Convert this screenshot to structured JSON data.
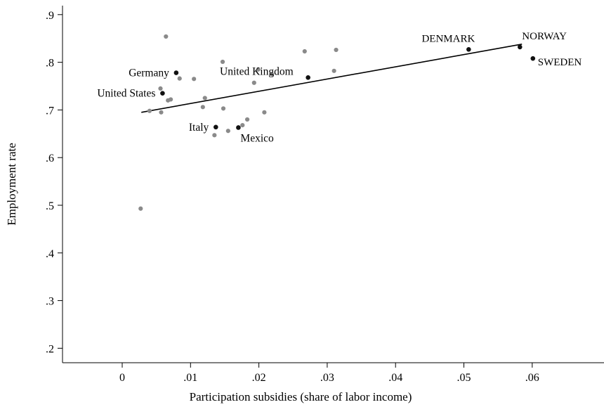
{
  "chart_data": {
    "type": "scatter",
    "xlabel": "Participation subsidies (share of labor income)",
    "ylabel": "Employment rate",
    "xlim": [
      -0.009,
      0.0695
    ],
    "ylim": [
      0.18,
      0.92
    ],
    "x_ticks": [
      0,
      0.01,
      0.02,
      0.03,
      0.04,
      0.05,
      0.06
    ],
    "x_tick_labels": [
      "0",
      ".01",
      ".02",
      ".03",
      ".04",
      ".05",
      ".06"
    ],
    "y_ticks": [
      0.2,
      0.3,
      0.4,
      0.5,
      0.6,
      0.7,
      0.8,
      0.9
    ],
    "y_tick_labels": [
      ".2",
      ".3",
      ".4",
      ".5",
      ".6",
      ".7",
      ".8",
      ".9"
    ],
    "grid": false,
    "colors": {
      "highlighted": "#111111",
      "other": "#8a8a8a",
      "fit_line": "#000000"
    },
    "fit_line": {
      "x": [
        0.0028,
        0.0585
      ],
      "y": [
        0.695,
        0.838
      ]
    },
    "series": [
      {
        "points": [
          {
            "x": 0.0079,
            "y": 0.778,
            "label": "Germany",
            "anchor": "left"
          },
          {
            "x": 0.0059,
            "y": 0.735,
            "label": "United States",
            "anchor": "left"
          },
          {
            "x": 0.0272,
            "y": 0.768,
            "label": "United Kingdom",
            "anchor": "left-up"
          },
          {
            "x": 0.0137,
            "y": 0.664,
            "label": "Italy",
            "anchor": "left"
          },
          {
            "x": 0.017,
            "y": 0.663,
            "label": "Mexico",
            "anchor": "below-right"
          },
          {
            "x": 0.0507,
            "y": 0.827,
            "label": "DENMARK",
            "anchor": "above-left"
          },
          {
            "x": 0.0582,
            "y": 0.832,
            "label": "NORWAY",
            "anchor": "above-right"
          },
          {
            "x": 0.0601,
            "y": 0.808,
            "label": "SWEDEN",
            "anchor": "right"
          }
        ]
      },
      {
        "points": [
          {
            "x": 0.0027,
            "y": 0.493
          },
          {
            "x": 0.004,
            "y": 0.698
          },
          {
            "x": 0.0056,
            "y": 0.745
          },
          {
            "x": 0.0057,
            "y": 0.695
          },
          {
            "x": 0.0064,
            "y": 0.854
          },
          {
            "x": 0.0067,
            "y": 0.72
          },
          {
            "x": 0.0071,
            "y": 0.722
          },
          {
            "x": 0.0084,
            "y": 0.766
          },
          {
            "x": 0.0105,
            "y": 0.765
          },
          {
            "x": 0.0118,
            "y": 0.706
          },
          {
            "x": 0.0121,
            "y": 0.725
          },
          {
            "x": 0.0135,
            "y": 0.647
          },
          {
            "x": 0.0147,
            "y": 0.801
          },
          {
            "x": 0.0148,
            "y": 0.703
          },
          {
            "x": 0.0155,
            "y": 0.656
          },
          {
            "x": 0.0176,
            "y": 0.668
          },
          {
            "x": 0.0183,
            "y": 0.68
          },
          {
            "x": 0.0193,
            "y": 0.757
          },
          {
            "x": 0.0199,
            "y": 0.785
          },
          {
            "x": 0.0208,
            "y": 0.695
          },
          {
            "x": 0.0219,
            "y": 0.775
          },
          {
            "x": 0.0267,
            "y": 0.823
          },
          {
            "x": 0.031,
            "y": 0.782
          },
          {
            "x": 0.0313,
            "y": 0.826
          }
        ]
      }
    ]
  }
}
